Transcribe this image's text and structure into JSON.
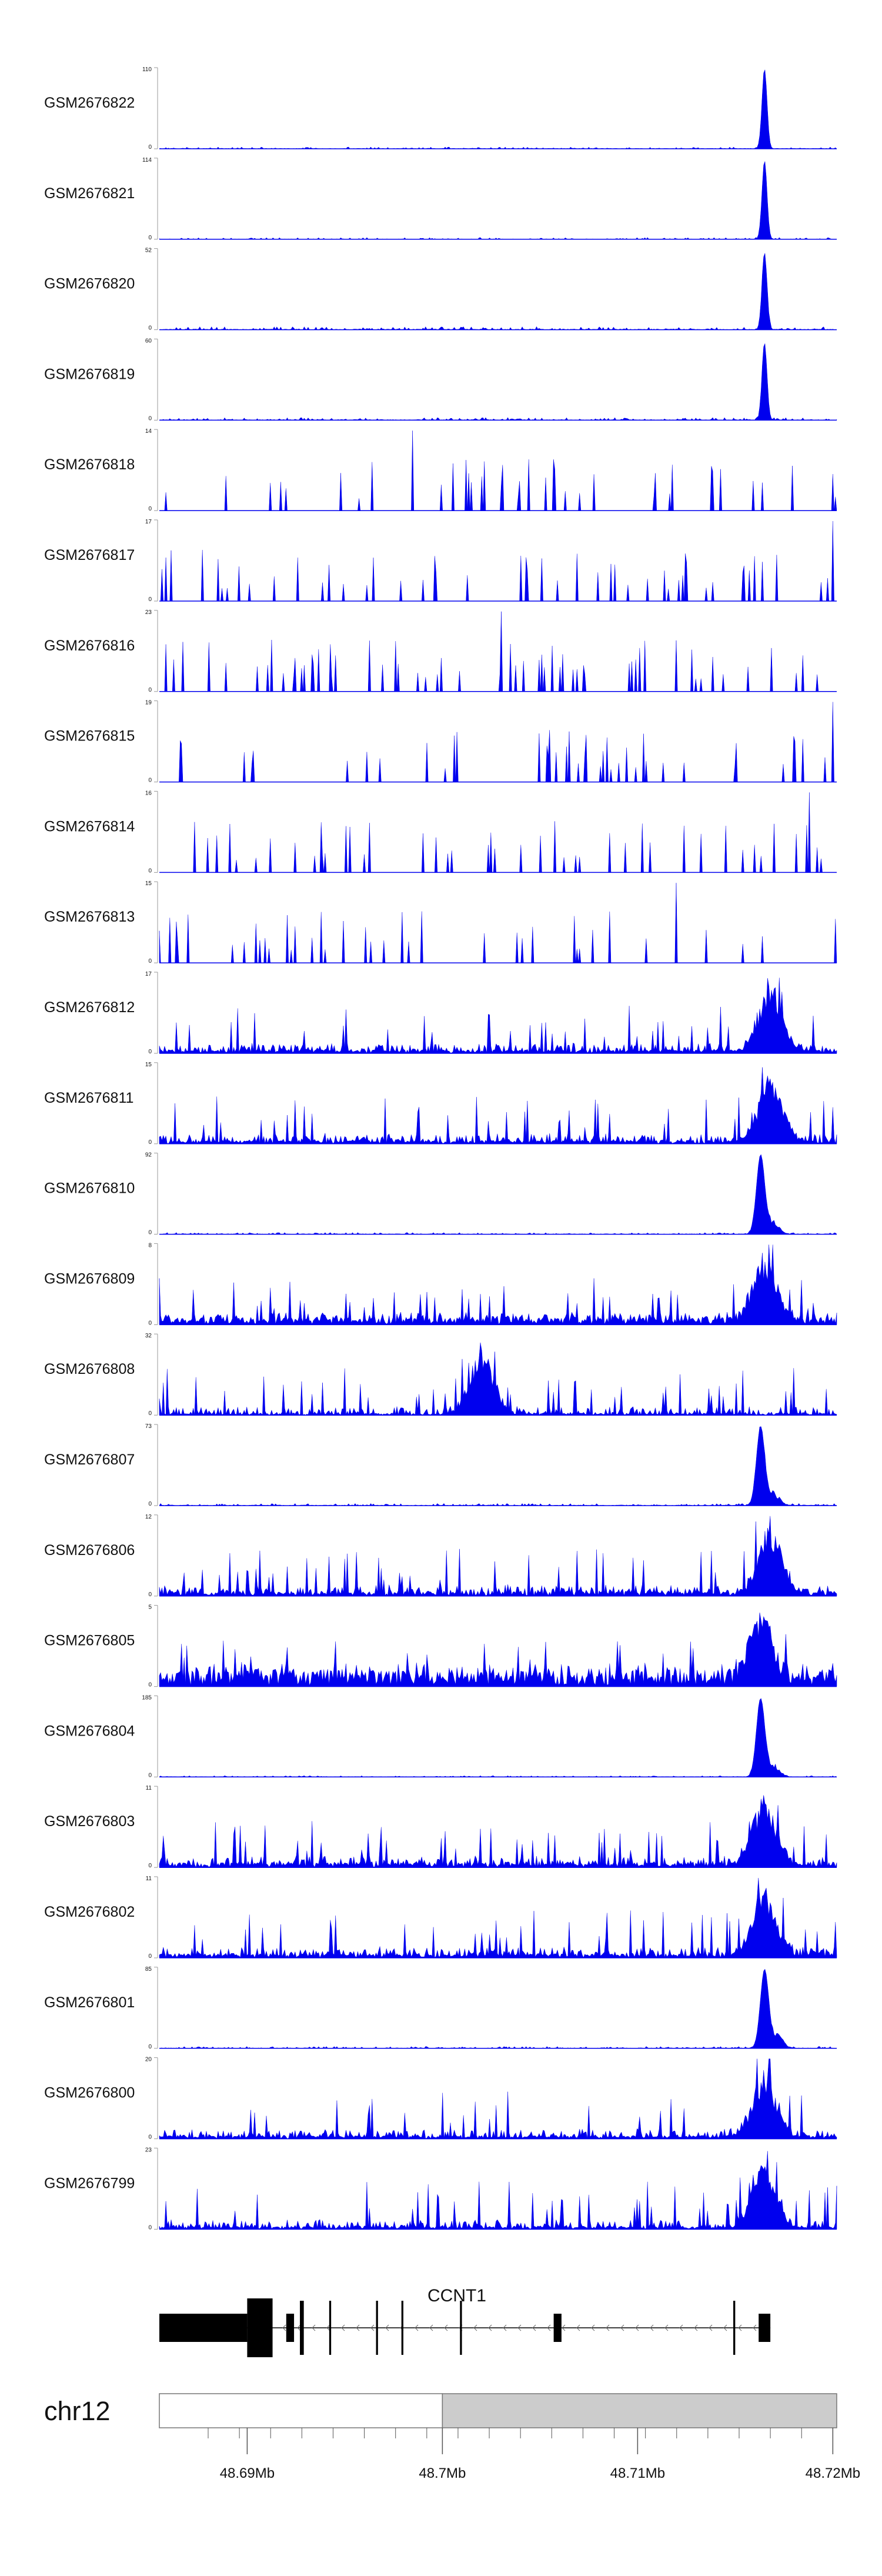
{
  "colors": {
    "signal": "#0000ee",
    "gene": "#000000",
    "ideogram_left": "#ffffff",
    "ideogram_right": "#cccccc",
    "axis": "#555555"
  },
  "chart_data": {
    "type": "area",
    "title": "",
    "xlabel": "",
    "x_range_mb": [
      48.6855,
      48.7202
    ],
    "samples": [
      {
        "name": "GSM2676822",
        "ymax_label": "110",
        "ymin_label": "0",
        "ymax": 110,
        "peak_mb": 48.7165,
        "peak": 110,
        "baseline": 2.5,
        "profile": "sharp",
        "seed": 1
      },
      {
        "name": "GSM2676821",
        "ymax_label": "114",
        "ymin_label": "0",
        "ymax": 114,
        "peak_mb": 48.7165,
        "peak": 112,
        "baseline": 2.5,
        "profile": "sharp",
        "seed": 2
      },
      {
        "name": "GSM2676820",
        "ymax_label": "52",
        "ymin_label": "0",
        "ymax": 52,
        "peak_mb": 48.7165,
        "peak": 50,
        "baseline": 2.0,
        "profile": "sharp",
        "seed": 3
      },
      {
        "name": "GSM2676819",
        "ymax_label": "60",
        "ymin_label": "0",
        "ymax": 60,
        "peak_mb": 48.7165,
        "peak": 58,
        "baseline": 2.0,
        "profile": "sharp",
        "seed": 4
      },
      {
        "name": "GSM2676818",
        "ymax_label": "14",
        "ymin_label": "0",
        "ymax": 14,
        "peak_mb": 48.6985,
        "peak": 14,
        "baseline": 0,
        "profile": "sparse",
        "seed": 5
      },
      {
        "name": "GSM2676817",
        "ymax_label": "17",
        "ymin_label": "0",
        "ymax": 17,
        "peak_mb": 48.72,
        "peak": 17,
        "baseline": 0,
        "profile": "sparse",
        "seed": 6
      },
      {
        "name": "GSM2676816",
        "ymax_label": "23",
        "ymin_label": "0",
        "ymax": 23,
        "peak_mb": 48.703,
        "peak": 23,
        "baseline": 0,
        "profile": "sparse",
        "seed": 7
      },
      {
        "name": "GSM2676815",
        "ymax_label": "19",
        "ymin_label": "0",
        "ymax": 19,
        "peak_mb": 48.72,
        "peak": 19,
        "baseline": 0,
        "profile": "sparse",
        "seed": 8
      },
      {
        "name": "GSM2676814",
        "ymax_label": "16",
        "ymin_label": "0",
        "ymax": 16,
        "peak_mb": 48.7188,
        "peak": 16,
        "baseline": 0,
        "profile": "sparse",
        "seed": 9
      },
      {
        "name": "GSM2676813",
        "ymax_label": "15",
        "ymin_label": "0",
        "ymax": 15,
        "peak_mb": 48.712,
        "peak": 15,
        "baseline": 0,
        "profile": "sparse",
        "seed": 10
      },
      {
        "name": "GSM2676812",
        "ymax_label": "17",
        "ymin_label": "0",
        "ymax": 17,
        "peak_mb": 48.7168,
        "peak": 17,
        "baseline": 0.6,
        "profile": "dense",
        "seed": 11
      },
      {
        "name": "GSM2676811",
        "ymax_label": "15",
        "ymin_label": "0",
        "ymax": 15,
        "peak_mb": 48.7168,
        "peak": 15,
        "baseline": 0.6,
        "profile": "dense",
        "seed": 12
      },
      {
        "name": "GSM2676810",
        "ymax_label": "92",
        "ymin_label": "0",
        "ymax": 92,
        "peak_mb": 48.7163,
        "peak": 90,
        "baseline": 2,
        "profile": "broad",
        "seed": 13
      },
      {
        "name": "GSM2676809",
        "ymax_label": "8",
        "ymin_label": "0",
        "ymax": 8,
        "peak_mb": 48.7165,
        "peak": 8,
        "baseline": 0.6,
        "profile": "dense",
        "seed": 14
      },
      {
        "name": "GSM2676808",
        "ymax_label": "32",
        "ymin_label": "0",
        "ymax": 32,
        "peak_mb": 48.702,
        "peak": 32,
        "baseline": 0.3,
        "profile": "dense",
        "seed": 15
      },
      {
        "name": "GSM2676807",
        "ymax_label": "73",
        "ymin_label": "0",
        "ymax": 73,
        "peak_mb": 48.7163,
        "peak": 71,
        "baseline": 2,
        "profile": "broad",
        "seed": 16
      },
      {
        "name": "GSM2676806",
        "ymax_label": "12",
        "ymin_label": "0",
        "ymax": 12,
        "peak_mb": 48.7168,
        "peak": 12,
        "baseline": 0.6,
        "profile": "dense",
        "seed": 17
      },
      {
        "name": "GSM2676805",
        "ymax_label": "5",
        "ymin_label": "0",
        "ymax": 5,
        "peak_mb": 48.7163,
        "peak": 5,
        "baseline": 1,
        "profile": "dense",
        "seed": 18
      },
      {
        "name": "GSM2676804",
        "ymax_label": "185",
        "ymin_label": "0",
        "ymax": 185,
        "peak_mb": 48.7163,
        "peak": 180,
        "baseline": 3,
        "profile": "broad",
        "seed": 19
      },
      {
        "name": "GSM2676803",
        "ymax_label": "11",
        "ymin_label": "0",
        "ymax": 11,
        "peak_mb": 48.7165,
        "peak": 11,
        "baseline": 0.6,
        "profile": "dense",
        "seed": 20
      },
      {
        "name": "GSM2676802",
        "ymax_label": "11",
        "ymin_label": "0",
        "ymax": 11,
        "peak_mb": 48.7165,
        "peak": 11,
        "baseline": 0.5,
        "profile": "dense",
        "seed": 21
      },
      {
        "name": "GSM2676801",
        "ymax_label": "85",
        "ymin_label": "0",
        "ymax": 85,
        "peak_mb": 48.7165,
        "peak": 83,
        "baseline": 2,
        "profile": "broad",
        "seed": 22
      },
      {
        "name": "GSM2676800",
        "ymax_label": "20",
        "ymin_label": "0",
        "ymax": 20,
        "peak_mb": 48.7165,
        "peak": 20,
        "baseline": 0.6,
        "profile": "dense",
        "seed": 23
      },
      {
        "name": "GSM2676799",
        "ymax_label": "23",
        "ymin_label": "0",
        "ymax": 23,
        "peak_mb": 48.7165,
        "peak": 23,
        "baseline": 0.6,
        "profile": "dense",
        "seed": 24
      }
    ],
    "gene": {
      "name": "CCNT1",
      "strand": "-",
      "start_mb": 48.6855,
      "end_mb": 48.7168,
      "exons_mb": [
        [
          48.6855,
          48.69,
          "cds"
        ],
        [
          48.69,
          48.6913,
          "cds"
        ],
        [
          48.692,
          48.6924,
          "cds"
        ],
        [
          48.6927,
          48.6929,
          "cds"
        ],
        [
          48.6942,
          48.6943,
          "cds"
        ],
        [
          48.6966,
          48.6967,
          "cds"
        ],
        [
          48.6979,
          48.698,
          "cds"
        ],
        [
          48.7009,
          48.701,
          "cds"
        ],
        [
          48.7057,
          48.7061,
          "cds"
        ],
        [
          48.7149,
          48.715,
          "cds"
        ],
        [
          48.7162,
          48.7168,
          "cds"
        ]
      ]
    },
    "ideogram": {
      "chromosome": "chr12",
      "boundary_mb": 48.7
    },
    "axis": {
      "ticks_mb": [
        48.69,
        48.7,
        48.71,
        48.72
      ],
      "tick_labels": [
        "48.69Mb",
        "48.7Mb",
        "48.71Mb",
        "48.72Mb"
      ],
      "minor_step_mb": 0.0016
    }
  }
}
